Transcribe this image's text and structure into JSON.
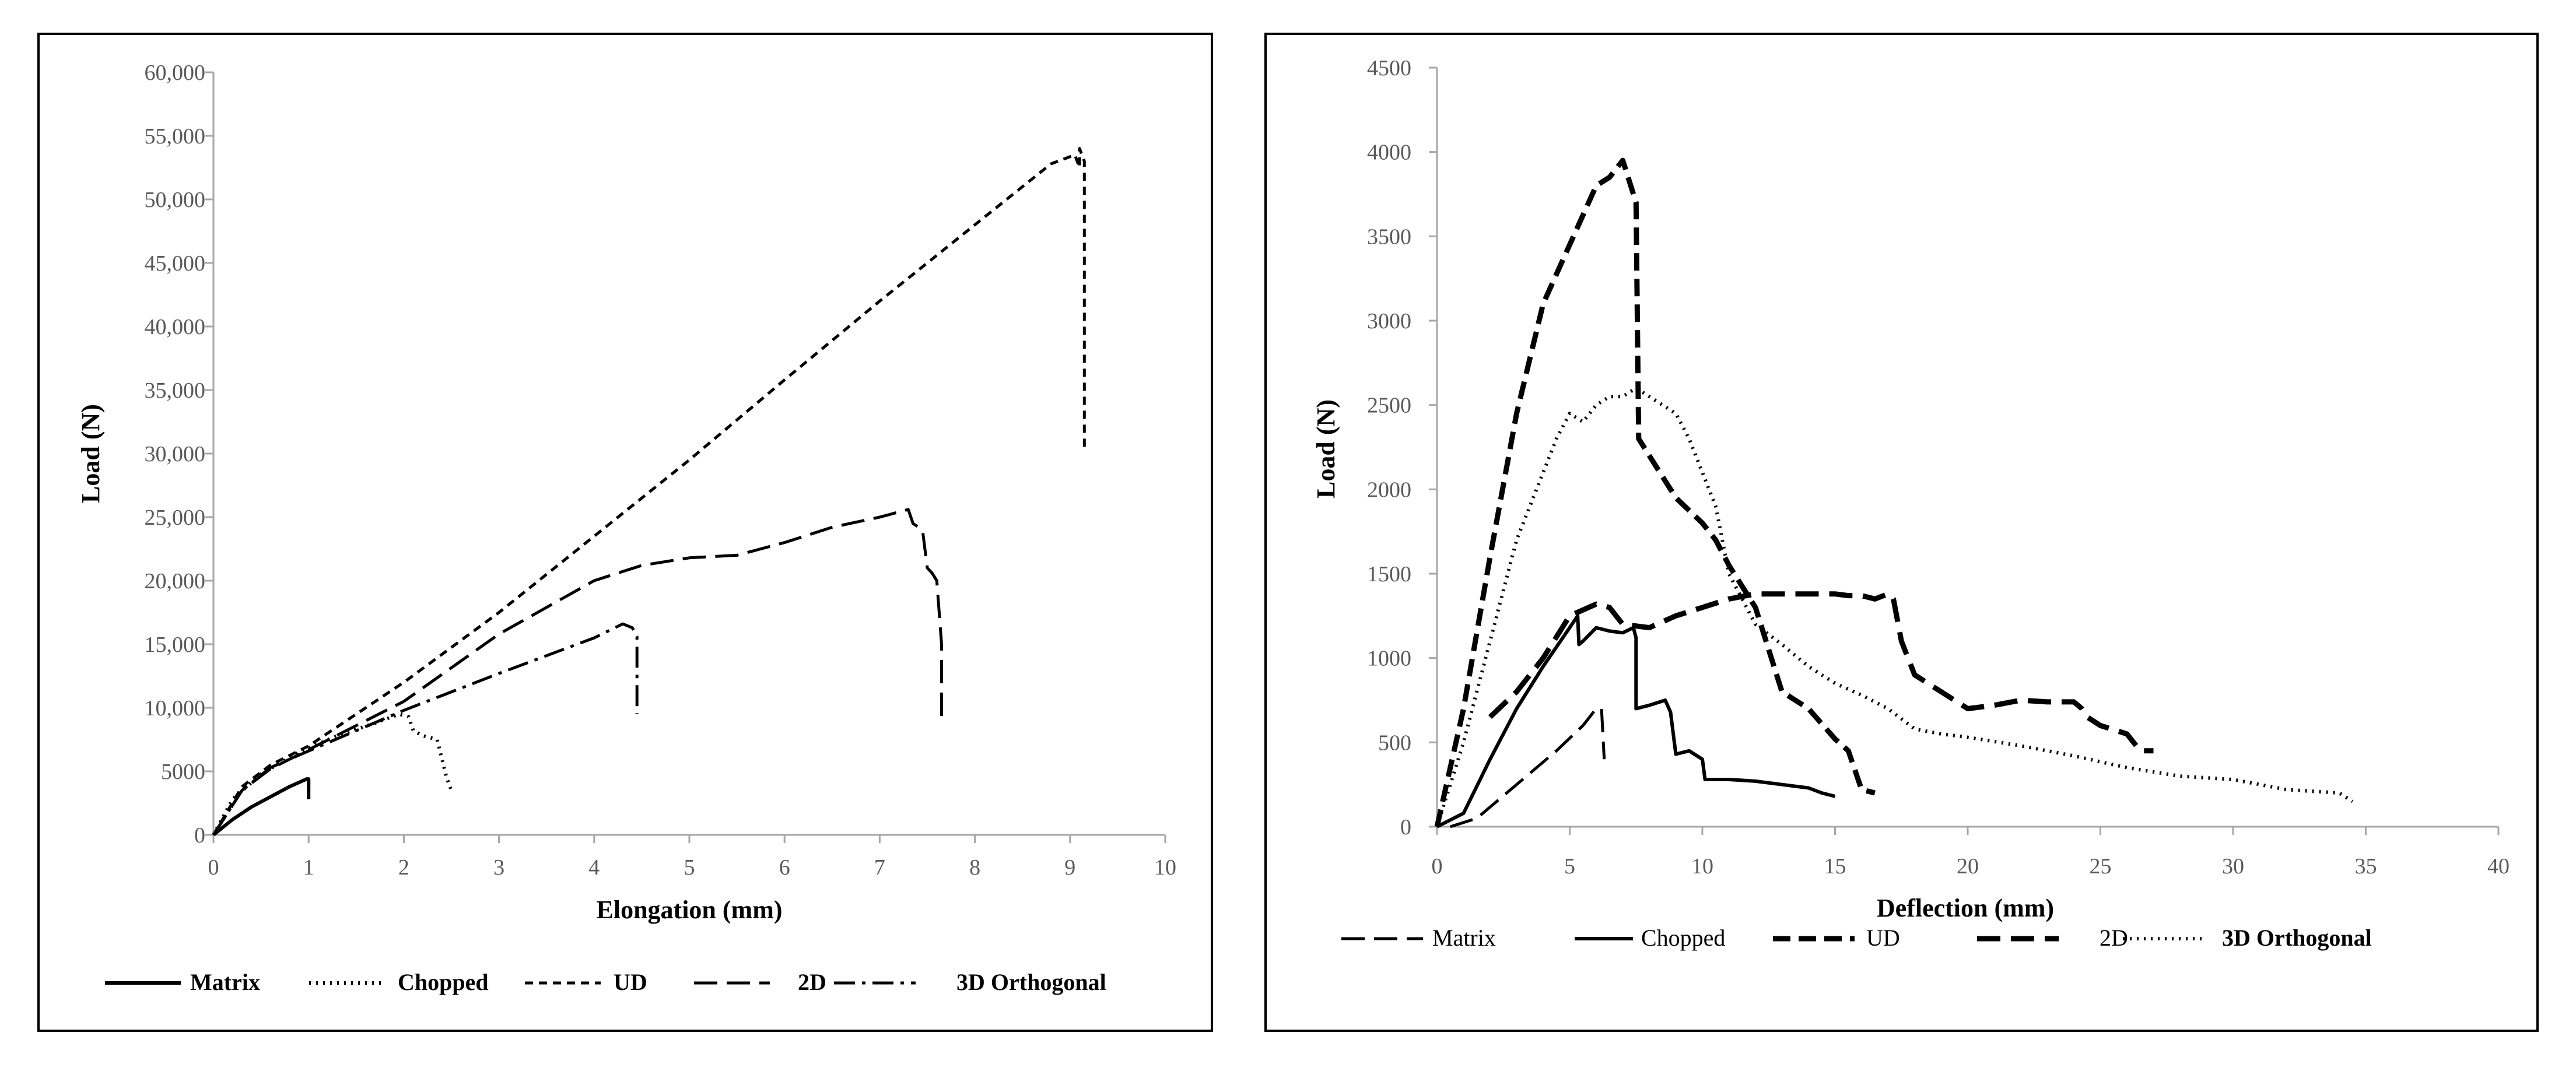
{
  "chart_data": [
    {
      "type": "line",
      "title": "",
      "xlabel": "Elongation (mm)",
      "ylabel": "Load (N)",
      "xlim": [
        0,
        10
      ],
      "ylim": [
        0,
        60000
      ],
      "x_ticks": [
        "0",
        "1",
        "2",
        "3",
        "4",
        "5",
        "6",
        "7",
        "8",
        "9",
        "10"
      ],
      "y_ticks": [
        "0",
        "5000",
        "10,000",
        "15,000",
        "20,000",
        "25,000",
        "30,000",
        "35,000",
        "40,000",
        "45,000",
        "50,000",
        "55,000",
        "60,000"
      ],
      "grid": false,
      "legend_position": "bottom",
      "series": [
        {
          "name": "Matrix",
          "style": "solid",
          "x": [
            0,
            0.2,
            0.4,
            0.6,
            0.8,
            0.98,
            1.0,
            1.0
          ],
          "y": [
            0,
            1200,
            2200,
            3000,
            3800,
            4400,
            4400,
            2800
          ]
        },
        {
          "name": "Chopped",
          "style": "dotted",
          "x": [
            0,
            0.2,
            0.5,
            0.9,
            1.3,
            1.7,
            1.95,
            2.05,
            2.1,
            2.2,
            2.35,
            2.4,
            2.45,
            2.5
          ],
          "y": [
            0,
            2800,
            4800,
            6500,
            7800,
            8800,
            9500,
            9300,
            8200,
            7800,
            7500,
            6000,
            4500,
            3500
          ]
        },
        {
          "name": "UD",
          "style": "dashed-short",
          "x": [
            0,
            0.3,
            0.6,
            1,
            2,
            3,
            4,
            5,
            6,
            7,
            8,
            8.8,
            9.05,
            9.1,
            9.1,
            9.15,
            9.15
          ],
          "y": [
            0,
            3800,
            5500,
            7000,
            12000,
            17500,
            23500,
            29500,
            35800,
            42000,
            48000,
            52800,
            53500,
            52500,
            54000,
            53000,
            30500
          ]
        },
        {
          "name": "2D",
          "style": "dashed-long",
          "x": [
            0,
            0.3,
            0.6,
            1,
            2,
            3,
            4,
            4.5,
            5,
            5.5,
            6,
            6.5,
            7,
            7.3,
            7.35,
            7.45,
            7.5,
            7.55,
            7.6,
            7.65,
            7.65
          ],
          "y": [
            0,
            3500,
            5200,
            6700,
            10500,
            15800,
            20000,
            21200,
            21800,
            22000,
            23000,
            24200,
            25000,
            25600,
            24500,
            24000,
            21000,
            20600,
            20000,
            15000,
            8900
          ]
        },
        {
          "name": "3D Orthogonal",
          "style": "dash-dot",
          "x": [
            0,
            0.3,
            0.6,
            1,
            2,
            3,
            4,
            4.3,
            4.4,
            4.45,
            4.45
          ],
          "y": [
            0,
            3500,
            5300,
            6600,
            9800,
            12700,
            15500,
            16600,
            16300,
            15600,
            9500
          ]
        }
      ]
    },
    {
      "type": "line",
      "title": "",
      "xlabel": "Deflection (mm)",
      "ylabel": "Load (N)",
      "xlim": [
        0,
        40
      ],
      "ylim": [
        0,
        4500
      ],
      "x_ticks": [
        "0",
        "5",
        "10",
        "15",
        "20",
        "25",
        "30",
        "35",
        "40"
      ],
      "y_ticks": [
        "0",
        "500",
        "1000",
        "1500",
        "2000",
        "2500",
        "3000",
        "3500",
        "4000",
        "4500"
      ],
      "grid": false,
      "legend_position": "bottom",
      "series": [
        {
          "name": "Matrix",
          "style": "dashed-long",
          "x": [
            0.5,
            1.5,
            3,
            4.5,
            5.5,
            6,
            6.2,
            6.3
          ],
          "y": [
            0,
            50,
            250,
            450,
            600,
            700,
            700,
            400
          ]
        },
        {
          "name": "Chopped",
          "style": "solid",
          "x": [
            0,
            1,
            2,
            3,
            4,
            5,
            5.3,
            5.35,
            5.5,
            6,
            6.5,
            7,
            7.4,
            7.5,
            7.5,
            8,
            8.6,
            8.8,
            9,
            9.5,
            10,
            10.1,
            10.5,
            11,
            12,
            13,
            14,
            14.5,
            15
          ],
          "y": [
            0,
            80,
            400,
            700,
            950,
            1180,
            1250,
            1080,
            1100,
            1180,
            1160,
            1150,
            1180,
            1120,
            700,
            720,
            750,
            680,
            430,
            450,
            400,
            280,
            280,
            280,
            270,
            250,
            230,
            200,
            180
          ]
        },
        {
          "name": "UD",
          "style": "dashed-medium",
          "x": [
            0,
            1,
            2,
            3,
            4,
            5,
            6,
            6.5,
            7,
            7.3,
            7.5,
            7.6,
            7.6,
            8,
            9,
            10,
            10.5,
            11,
            12,
            13,
            13.5,
            14,
            15,
            15.5,
            16,
            16.5
          ],
          "y": [
            0,
            700,
            1600,
            2450,
            3100,
            3450,
            3800,
            3850,
            3950,
            3800,
            3700,
            2300,
            2300,
            2200,
            1950,
            1800,
            1700,
            1550,
            1300,
            800,
            750,
            700,
            520,
            450,
            220,
            200
          ]
        },
        {
          "name": "2D",
          "style": "dashed-thick",
          "x": [
            2,
            3,
            4,
            5,
            6,
            6.5,
            7,
            8,
            9,
            10,
            11,
            12,
            13,
            14,
            15,
            15.5,
            16,
            16.5,
            17,
            17.2,
            17.5,
            18,
            19,
            19.5,
            20,
            21,
            22,
            23,
            24,
            24.3,
            24.5,
            25,
            26,
            26.5,
            27
          ],
          "y": [
            650,
            800,
            1000,
            1250,
            1320,
            1300,
            1200,
            1180,
            1250,
            1300,
            1350,
            1380,
            1380,
            1380,
            1380,
            1370,
            1370,
            1350,
            1380,
            1350,
            1100,
            900,
            800,
            750,
            700,
            720,
            750,
            740,
            740,
            700,
            650,
            600,
            550,
            450,
            450
          ]
        },
        {
          "name": "3D Orthogonal",
          "style": "dotted",
          "x": [
            0,
            1,
            2,
            3,
            4,
            4.5,
            5,
            5.5,
            6,
            6.5,
            7,
            7.5,
            8,
            8.5,
            9,
            9.5,
            10,
            10.5,
            11,
            12,
            13,
            14,
            15,
            16,
            17,
            18,
            19,
            20,
            22,
            24,
            26,
            28,
            30,
            32,
            34,
            34.5
          ],
          "y": [
            0,
            500,
            1100,
            1700,
            2100,
            2300,
            2450,
            2400,
            2500,
            2550,
            2550,
            2600,
            2550,
            2500,
            2450,
            2300,
            2100,
            1900,
            1500,
            1200,
            1080,
            950,
            850,
            780,
            700,
            580,
            550,
            530,
            480,
            420,
            350,
            300,
            280,
            220,
            200,
            150
          ]
        }
      ]
    }
  ]
}
